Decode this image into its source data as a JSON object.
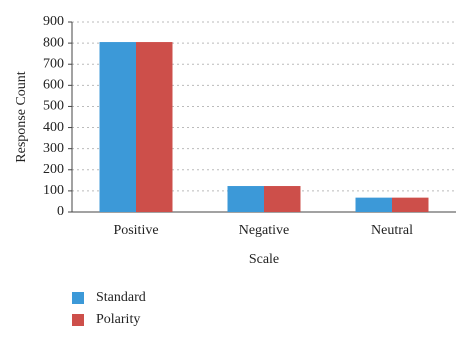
{
  "chart_data": {
    "type": "bar",
    "x_label": "Scale",
    "y_label": "Response Count",
    "categories": [
      "Positive",
      "Negative",
      "Neutral"
    ],
    "series": [
      {
        "name": "Standard",
        "color": "#3c99d8",
        "values": [
          805,
          123,
          68
        ]
      },
      {
        "name": "Polarity",
        "color": "#cd4f4a",
        "values": [
          805,
          123,
          68
        ]
      }
    ],
    "ylim": [
      0,
      900
    ],
    "yticks": [
      0,
      100,
      200,
      300,
      400,
      500,
      600,
      700,
      800,
      900
    ],
    "grid": true,
    "legend": "bottom-left"
  }
}
